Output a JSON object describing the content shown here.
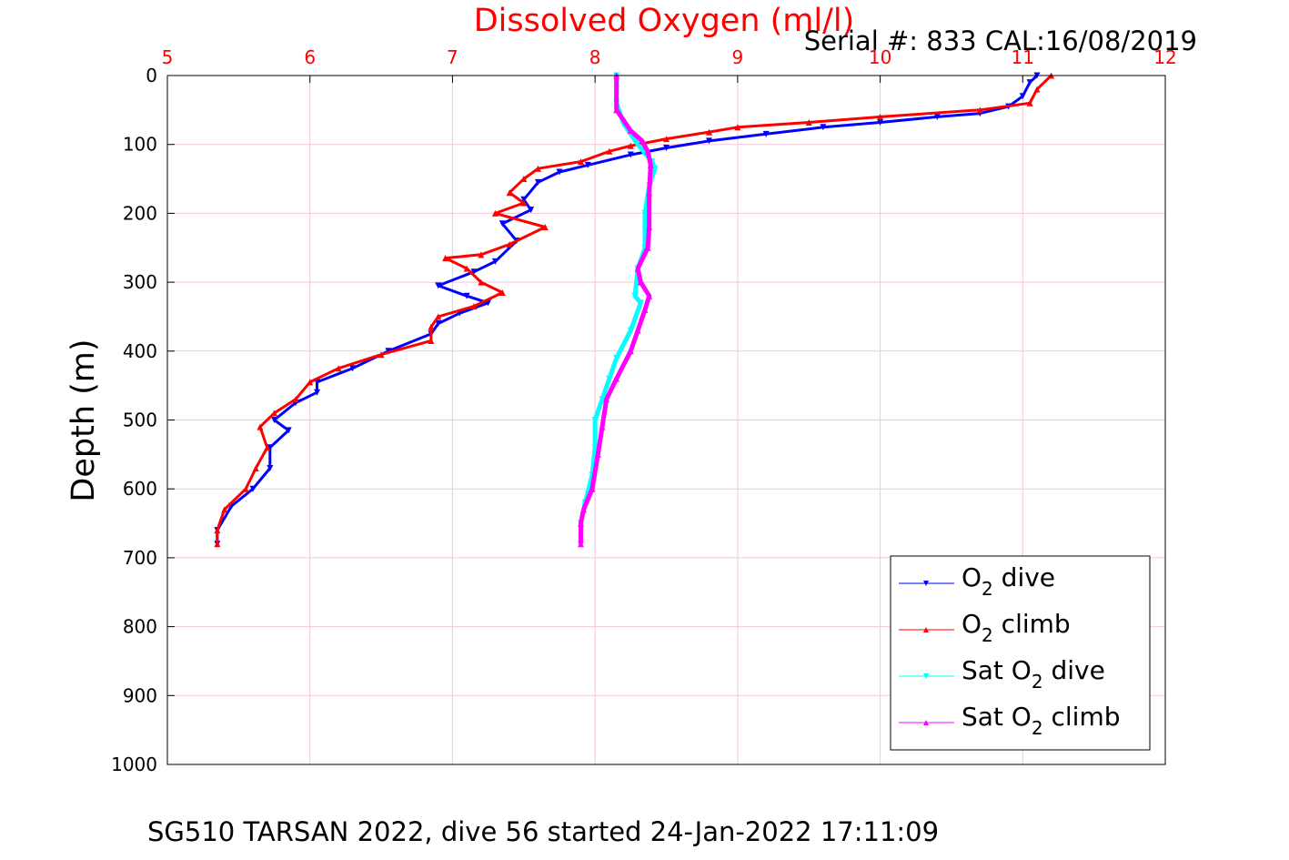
{
  "chart_data": {
    "type": "line",
    "title": "Dissolved Oxygen (ml/l)",
    "subtitle": "Serial #: 833  CAL:16/08/2019",
    "bottom_title": "SG510 TARSAN 2022, dive 56 started 24-Jan-2022 17:11:09",
    "xlabel": "",
    "ylabel": "Depth (m)",
    "xlim": [
      5,
      12
    ],
    "ylim": [
      0,
      1000
    ],
    "y_reversed": true,
    "x_axis_position": "top",
    "x_ticks": [
      "5",
      "6",
      "7",
      "8",
      "9",
      "10",
      "11",
      "12"
    ],
    "y_ticks": [
      "0",
      "100",
      "200",
      "300",
      "400",
      "500",
      "600",
      "700",
      "800",
      "900",
      "1000"
    ],
    "grid": true,
    "legend_position": "bottom-right",
    "colors": {
      "title": "#ff0000",
      "x_tick_labels": "#ff0000",
      "grid": "#f2c8d8"
    },
    "legend": [
      {
        "key": "o2_dive",
        "parts": [
          "O",
          "2",
          " dive"
        ],
        "color": "#0000ff",
        "marker": "down-triangle"
      },
      {
        "key": "o2_climb",
        "parts": [
          "O",
          "2",
          " climb"
        ],
        "color": "#ff0000",
        "marker": "up-triangle"
      },
      {
        "key": "sat_dive",
        "parts": [
          "Sat O",
          "2",
          " dive"
        ],
        "color": "#00ffff",
        "marker": "down-triangle"
      },
      {
        "key": "sat_climb",
        "parts": [
          "Sat O",
          "2",
          " climb"
        ],
        "color": "#ff00ff",
        "marker": "up-triangle"
      }
    ],
    "series": [
      {
        "key": "o2_dive",
        "color": "#0000ff",
        "points": [
          [
            11.1,
            0
          ],
          [
            11.05,
            10
          ],
          [
            11.0,
            30
          ],
          [
            10.9,
            45
          ],
          [
            10.7,
            55
          ],
          [
            10.4,
            60
          ],
          [
            10.0,
            68
          ],
          [
            9.6,
            75
          ],
          [
            9.2,
            85
          ],
          [
            8.8,
            95
          ],
          [
            8.5,
            105
          ],
          [
            8.25,
            115
          ],
          [
            7.95,
            130
          ],
          [
            7.75,
            140
          ],
          [
            7.6,
            155
          ],
          [
            7.5,
            180
          ],
          [
            7.55,
            195
          ],
          [
            7.35,
            215
          ],
          [
            7.45,
            240
          ],
          [
            7.3,
            270
          ],
          [
            7.15,
            285
          ],
          [
            6.9,
            305
          ],
          [
            7.1,
            320
          ],
          [
            7.25,
            330
          ],
          [
            7.05,
            345
          ],
          [
            6.9,
            360
          ],
          [
            6.85,
            375
          ],
          [
            6.55,
            400
          ],
          [
            6.3,
            425
          ],
          [
            6.05,
            445
          ],
          [
            6.05,
            460
          ],
          [
            5.9,
            475
          ],
          [
            5.75,
            500
          ],
          [
            5.85,
            515
          ],
          [
            5.72,
            540
          ],
          [
            5.72,
            570
          ],
          [
            5.6,
            600
          ],
          [
            5.45,
            625
          ],
          [
            5.35,
            660
          ],
          [
            5.35,
            680
          ]
        ]
      },
      {
        "key": "o2_climb",
        "color": "#ff0000",
        "points": [
          [
            11.2,
            0
          ],
          [
            11.1,
            20
          ],
          [
            11.05,
            40
          ],
          [
            10.7,
            50
          ],
          [
            10.0,
            60
          ],
          [
            9.5,
            68
          ],
          [
            9.0,
            75
          ],
          [
            8.8,
            82
          ],
          [
            8.5,
            92
          ],
          [
            8.25,
            102
          ],
          [
            8.1,
            110
          ],
          [
            7.9,
            125
          ],
          [
            7.6,
            135
          ],
          [
            7.5,
            150
          ],
          [
            7.4,
            170
          ],
          [
            7.5,
            185
          ],
          [
            7.3,
            200
          ],
          [
            7.65,
            220
          ],
          [
            7.4,
            245
          ],
          [
            7.2,
            260
          ],
          [
            6.95,
            265
          ],
          [
            7.1,
            280
          ],
          [
            7.2,
            300
          ],
          [
            7.35,
            315
          ],
          [
            7.15,
            335
          ],
          [
            6.9,
            350
          ],
          [
            6.85,
            365
          ],
          [
            6.85,
            385
          ],
          [
            6.5,
            405
          ],
          [
            6.2,
            425
          ],
          [
            6.0,
            445
          ],
          [
            5.9,
            470
          ],
          [
            5.75,
            490
          ],
          [
            5.65,
            510
          ],
          [
            5.7,
            540
          ],
          [
            5.62,
            570
          ],
          [
            5.55,
            600
          ],
          [
            5.4,
            630
          ],
          [
            5.35,
            660
          ],
          [
            5.35,
            680
          ]
        ]
      },
      {
        "key": "sat_dive",
        "color": "#00ffff",
        "points": [
          [
            8.15,
            0
          ],
          [
            8.15,
            40
          ],
          [
            8.2,
            70
          ],
          [
            8.3,
            100
          ],
          [
            8.4,
            125
          ],
          [
            8.42,
            135
          ],
          [
            8.38,
            160
          ],
          [
            8.35,
            200
          ],
          [
            8.35,
            250
          ],
          [
            8.3,
            280
          ],
          [
            8.28,
            320
          ],
          [
            8.32,
            330
          ],
          [
            8.25,
            370
          ],
          [
            8.15,
            410
          ],
          [
            8.1,
            440
          ],
          [
            8.05,
            470
          ],
          [
            8.0,
            500
          ],
          [
            8.0,
            540
          ],
          [
            7.98,
            580
          ],
          [
            7.93,
            620
          ],
          [
            7.9,
            650
          ],
          [
            7.9,
            680
          ]
        ]
      },
      {
        "key": "sat_climb",
        "color": "#ff00ff",
        "points": [
          [
            8.15,
            0
          ],
          [
            8.15,
            50
          ],
          [
            8.25,
            80
          ],
          [
            8.33,
            95
          ],
          [
            8.37,
            110
          ],
          [
            8.39,
            130
          ],
          [
            8.38,
            170
          ],
          [
            8.38,
            220
          ],
          [
            8.37,
            250
          ],
          [
            8.3,
            280
          ],
          [
            8.32,
            300
          ],
          [
            8.38,
            320
          ],
          [
            8.35,
            340
          ],
          [
            8.3,
            370
          ],
          [
            8.25,
            400
          ],
          [
            8.15,
            440
          ],
          [
            8.08,
            470
          ],
          [
            8.05,
            510
          ],
          [
            8.02,
            550
          ],
          [
            7.98,
            600
          ],
          [
            7.92,
            630
          ],
          [
            7.9,
            650
          ],
          [
            7.9,
            680
          ]
        ]
      }
    ]
  }
}
